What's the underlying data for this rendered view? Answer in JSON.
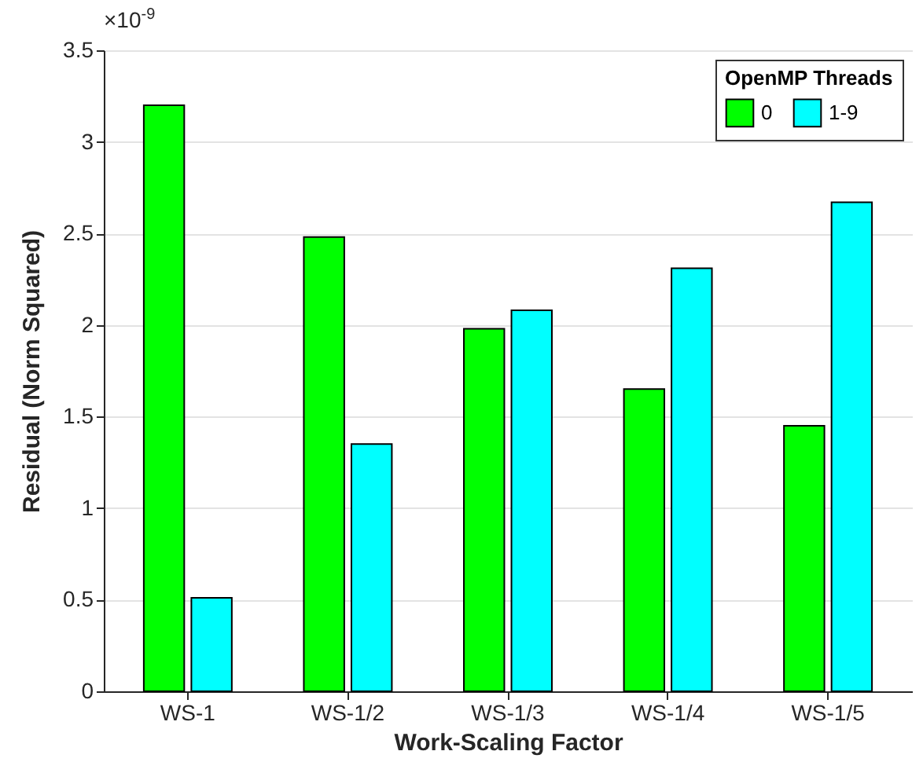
{
  "chart_data": {
    "type": "bar",
    "xlabel": "Work-Scaling Factor",
    "ylabel": "Residual (Norm Squared)",
    "legend_title": "OpenMP Threads",
    "annotations": [
      "×10$^{-9}$"
    ],
    "categories": [
      "WS-1",
      "WS-1/2",
      "WS-1/3",
      "WS-1/4",
      "WS-1/5"
    ],
    "series": [
      {
        "name": "0",
        "color": "#00ff00",
        "values": [
          3.2,
          2.48,
          1.98,
          1.65,
          1.45
        ]
      },
      {
        "name": "1-9",
        "color": "#00ffff",
        "values": [
          0.51,
          1.35,
          2.08,
          2.31,
          2.67
        ]
      }
    ],
    "ylim": [
      0,
      3.5
    ],
    "yticks": [
      0,
      0.5,
      1,
      1.5,
      2,
      2.5,
      3,
      3.5
    ],
    "grid": "y",
    "legend": "top right"
  }
}
